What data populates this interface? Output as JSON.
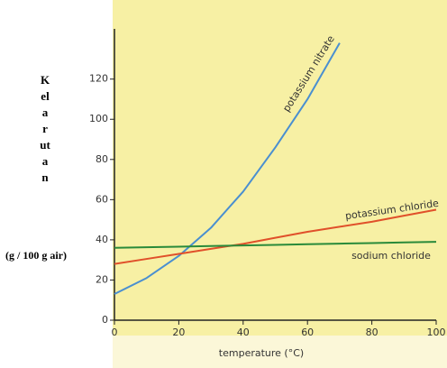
{
  "chart_data": {
    "type": "line",
    "y_label": "Kelarutan",
    "y_unit": "(g / 100 g air)",
    "x_label": "temperature (°C)",
    "x": [
      0,
      10,
      20,
      30,
      40,
      50,
      60,
      70,
      80,
      90,
      100
    ],
    "series": [
      {
        "name": "potassium nitrate",
        "color": "#4a8fd0",
        "values": [
          13,
          21,
          32,
          46,
          64,
          86,
          110,
          138,
          null,
          null,
          null
        ]
      },
      {
        "name": "potassium chloride",
        "color": "#e0502a",
        "values": [
          28,
          30.5,
          33,
          35.5,
          38,
          41,
          44,
          46.5,
          49,
          52,
          55
        ]
      },
      {
        "name": "sodium chloride",
        "color": "#2a8a3a",
        "values": [
          36,
          36.3,
          36.6,
          36.9,
          37.2,
          37.5,
          37.8,
          38.1,
          38.4,
          38.7,
          39
        ]
      }
    ],
    "xlim": [
      0,
      100
    ],
    "xticks": [
      0,
      20,
      40,
      60,
      80,
      100
    ],
    "ylim": [
      0,
      145
    ],
    "yticks": [
      0,
      20,
      40,
      60,
      80,
      100,
      120
    ]
  }
}
